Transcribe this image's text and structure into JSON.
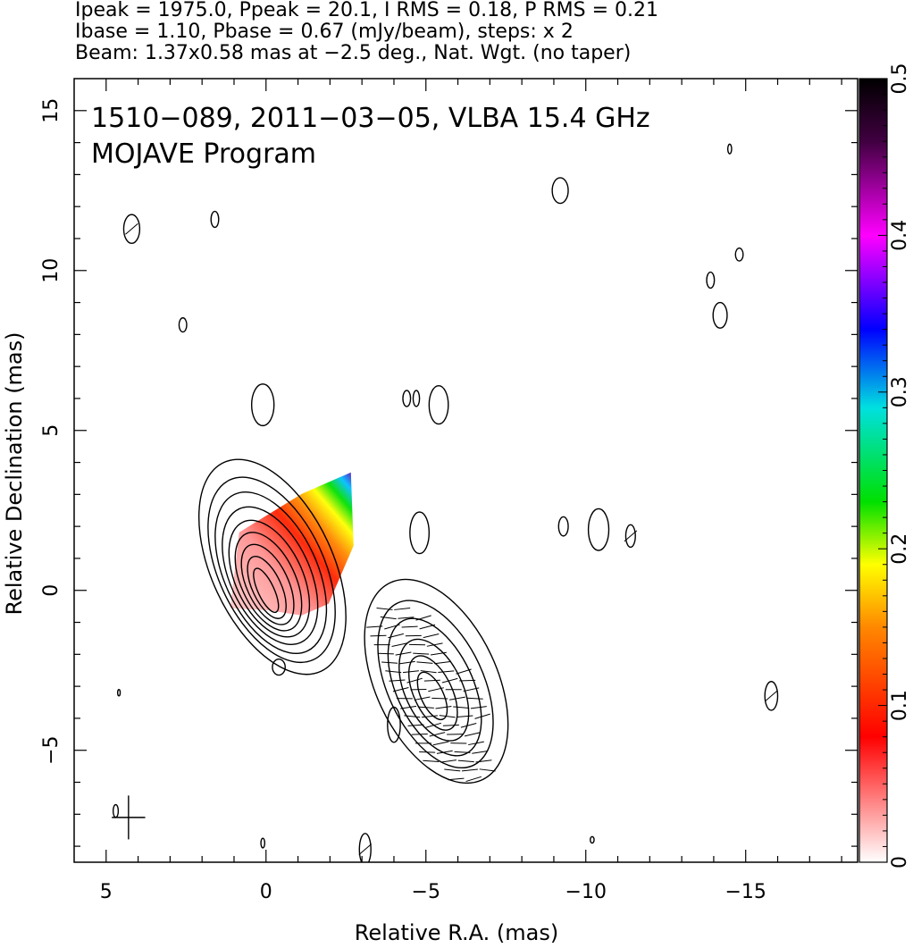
{
  "header": {
    "line1": "Ipeak = 1975.0, Ppeak = 20.1, I RMS = 0.18, P RMS = 0.21",
    "line2": "Ibase = 1.10, Pbase = 0.67 (mJy/beam), steps: x 2",
    "line3": "Beam: 1.37x0.58 mas at −2.5 deg., Nat. Wgt. (no taper)"
  },
  "chart_data": {
    "type": "heatmap",
    "title": "1510−089, 2011−03−05, VLBA 15.4 GHz",
    "subtitle": "MOJAVE Program",
    "xlabel": "Relative R.A. (mas)",
    "ylabel": "Relative Declination (mas)",
    "xlim": [
      6.0,
      -18.5
    ],
    "ylim": [
      -8.5,
      16.0
    ],
    "x_ticks": [
      5,
      0,
      -5,
      -10,
      -15
    ],
    "x_tick_labels": [
      "5",
      "0",
      "−5",
      "−10",
      "−15"
    ],
    "y_ticks": [
      15,
      10,
      5,
      0,
      -5
    ],
    "y_tick_labels": [
      "15",
      "10",
      "5",
      "0",
      "−5"
    ],
    "colorbar": {
      "range": [
        0,
        0.5
      ],
      "ticks": [
        0,
        0.1,
        0.2,
        0.3,
        0.4,
        0.5
      ],
      "tick_labels": [
        "0",
        "0.1",
        "0.2",
        "0.3",
        "0.4",
        "0.5"
      ],
      "colors": [
        "#ffffff",
        "#ff0000",
        "#ff8800",
        "#ffff00",
        "#00e000",
        "#00e0e0",
        "#0000ff",
        "#ff00ff",
        "#400040",
        "#000000"
      ]
    },
    "core_component": {
      "x": 0.0,
      "y": 0.0,
      "position_angle_deg": -25,
      "contour_radii": [
        [
          0.25,
          0.75
        ],
        [
          0.45,
          1.05
        ],
        [
          0.65,
          1.35
        ],
        [
          0.85,
          1.65
        ],
        [
          1.05,
          1.95
        ],
        [
          1.25,
          2.3
        ],
        [
          1.45,
          2.7
        ],
        [
          1.65,
          3.1
        ],
        [
          1.9,
          3.6
        ]
      ]
    },
    "jet_component": {
      "x": -5.2,
      "y": -3.3,
      "position_angle_deg": -25,
      "contour_radii": [
        [
          0.35,
          0.8
        ],
        [
          0.6,
          1.25
        ],
        [
          0.9,
          1.7
        ],
        [
          1.2,
          2.3
        ],
        [
          1.5,
          2.8
        ],
        [
          1.9,
          3.4
        ]
      ]
    },
    "small_contours": [
      {
        "x": 4.2,
        "y": 11.3,
        "rx": 0.25,
        "ry": 0.45
      },
      {
        "x": 1.6,
        "y": 11.6,
        "rx": 0.12,
        "ry": 0.25
      },
      {
        "x": 2.6,
        "y": 8.3,
        "rx": 0.12,
        "ry": 0.22
      },
      {
        "x": 0.1,
        "y": 5.8,
        "rx": 0.35,
        "ry": 0.65
      },
      {
        "x": -4.4,
        "y": 6.0,
        "rx": 0.12,
        "ry": 0.25
      },
      {
        "x": -4.7,
        "y": 6.0,
        "rx": 0.1,
        "ry": 0.25
      },
      {
        "x": -5.4,
        "y": 5.8,
        "rx": 0.3,
        "ry": 0.6
      },
      {
        "x": -9.2,
        "y": 12.5,
        "rx": 0.25,
        "ry": 0.4
      },
      {
        "x": -14.5,
        "y": 13.8,
        "rx": 0.06,
        "ry": 0.15
      },
      {
        "x": -14.8,
        "y": 10.5,
        "rx": 0.12,
        "ry": 0.2
      },
      {
        "x": -13.9,
        "y": 9.7,
        "rx": 0.12,
        "ry": 0.25
      },
      {
        "x": -14.2,
        "y": 8.6,
        "rx": 0.22,
        "ry": 0.4
      },
      {
        "x": -4.8,
        "y": 1.8,
        "rx": 0.3,
        "ry": 0.65
      },
      {
        "x": -9.3,
        "y": 2.0,
        "rx": 0.15,
        "ry": 0.3
      },
      {
        "x": -10.4,
        "y": 1.9,
        "rx": 0.32,
        "ry": 0.65
      },
      {
        "x": -11.4,
        "y": 1.7,
        "rx": 0.15,
        "ry": 0.35
      },
      {
        "x": -15.8,
        "y": -3.3,
        "rx": 0.2,
        "ry": 0.45
      },
      {
        "x": -4.0,
        "y": -4.2,
        "rx": 0.2,
        "ry": 0.55
      },
      {
        "x": -0.4,
        "y": -2.4,
        "rx": 0.2,
        "ry": 0.25
      },
      {
        "x": 4.6,
        "y": -3.2,
        "rx": 0.04,
        "ry": 0.1
      },
      {
        "x": 4.7,
        "y": -6.9,
        "rx": 0.08,
        "ry": 0.2
      },
      {
        "x": 0.1,
        "y": -7.9,
        "rx": 0.06,
        "ry": 0.15
      },
      {
        "x": -3.1,
        "y": -8.1,
        "rx": 0.18,
        "ry": 0.5
      },
      {
        "x": -10.2,
        "y": -7.8,
        "rx": 0.06,
        "ry": 0.1
      }
    ],
    "beam": {
      "x": 4.3,
      "y": -7.1,
      "major_mas": 1.37,
      "minor_mas": 0.58,
      "pa_deg": -2.5
    }
  }
}
